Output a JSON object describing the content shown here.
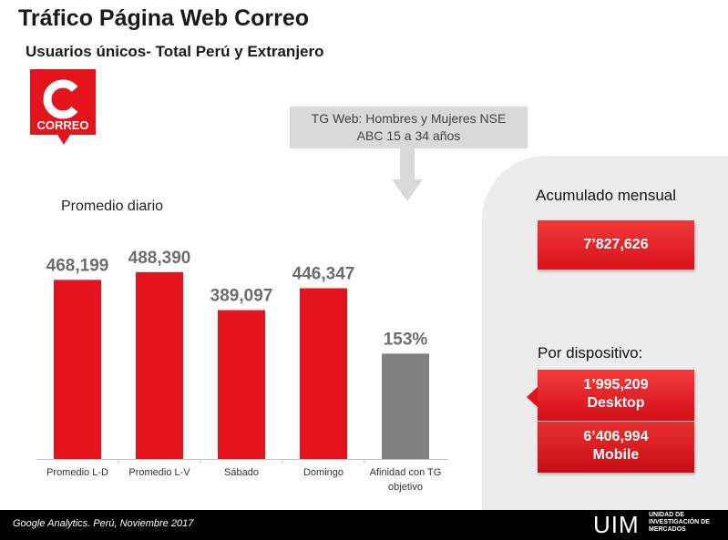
{
  "header": {
    "title": "Tráfico Página Web Correo",
    "subtitle": "Usuarios únicos- Total Perú y Extranjero"
  },
  "logo": {
    "letter": "C",
    "text": "CORREO",
    "color": "#e5141c"
  },
  "callout": {
    "line1": "TG Web: Hombres y Mujeres NSE",
    "line2": "ABC 15 a 34 años"
  },
  "chart_label": "Promedio diario",
  "chart_data": {
    "type": "bar",
    "categories": [
      "Promedio L-D",
      "Promedio L-V",
      "Sábado",
      "Domingo",
      "Afinidad con TG objetivo"
    ],
    "category_lines": [
      [
        "Promedio L-D"
      ],
      [
        "Promedio L-V"
      ],
      [
        "Sábado"
      ],
      [
        "Domingo"
      ],
      [
        "Afinidad con TG",
        "objetivo"
      ]
    ],
    "values": [
      468199,
      488390,
      389097,
      446347,
      153
    ],
    "data_labels": [
      "468,199",
      "488,390",
      "389,097",
      "446,347",
      "153%"
    ],
    "colors": [
      "#e5141c",
      "#e5141c",
      "#e5141c",
      "#e5141c",
      "#808080"
    ],
    "title": "",
    "xlabel": "",
    "ylabel": "",
    "ylim": [
      0,
      500000
    ],
    "grid": false,
    "note": ""
  },
  "summary": {
    "acumulado_label": "Acumulado mensual",
    "acumulado_value": "7’827,626",
    "dispositivo_label": "Por dispositivo:",
    "desktop_value": "1’995,209",
    "desktop_label": "Desktop",
    "mobile_value": "6’406,994",
    "mobile_label": "Mobile"
  },
  "footer": {
    "source": "Google Analytics. Perú, Noviembre 2017",
    "brand": "UIM",
    "brand_line1": "UNIDAD DE",
    "brand_line2": "INVESTIGACIÓN DE",
    "brand_line3": "MERCADOS"
  }
}
